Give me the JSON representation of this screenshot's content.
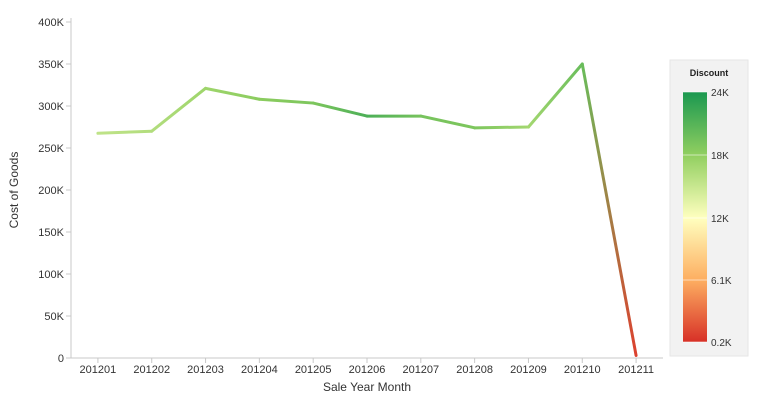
{
  "chart_data": {
    "type": "line",
    "xlabel": "Sale Year Month",
    "ylabel": "Cost of Goods",
    "categories": [
      "201201",
      "201202",
      "201203",
      "201204",
      "201205",
      "201206",
      "201207",
      "201208",
      "201209",
      "201210",
      "201211"
    ],
    "series": [
      {
        "values": [
          267500,
          270000,
          321000,
          308000,
          303500,
          288000,
          288000,
          274000,
          275000,
          350000,
          3000
        ],
        "color_values": [
          15500,
          16200,
          17300,
          18300,
          19000,
          21500,
          19300,
          19000,
          17000,
          20000,
          1000
        ]
      }
    ],
    "ylim": [
      0,
      400000
    ],
    "y_ticks": [
      {
        "value": 0,
        "label": "0"
      },
      {
        "value": 50000,
        "label": "50K"
      },
      {
        "value": 100000,
        "label": "100K"
      },
      {
        "value": 150000,
        "label": "150K"
      },
      {
        "value": 200000,
        "label": "200K"
      },
      {
        "value": 250000,
        "label": "250K"
      },
      {
        "value": 300000,
        "label": "300K"
      },
      {
        "value": 350000,
        "label": "350K"
      },
      {
        "value": 400000,
        "label": "400K"
      }
    ],
    "grid": false,
    "legend": {
      "title": "Discount",
      "placement": "right",
      "range": [
        200,
        24000
      ],
      "ticks": [
        {
          "value": 24000,
          "label": "24K"
        },
        {
          "value": 18000,
          "label": "18K"
        },
        {
          "value": 12000,
          "label": "12K"
        },
        {
          "value": 6100,
          "label": "6.1K"
        },
        {
          "value": 200,
          "label": "0.2K"
        }
      ],
      "gradient_stops": [
        {
          "value": 24000,
          "color": "#1a9850"
        },
        {
          "value": 18000,
          "color": "#91cf60"
        },
        {
          "value": 12000,
          "color": "#ffffbf"
        },
        {
          "value": 6100,
          "color": "#fdae61"
        },
        {
          "value": 200,
          "color": "#d73027"
        }
      ]
    }
  }
}
